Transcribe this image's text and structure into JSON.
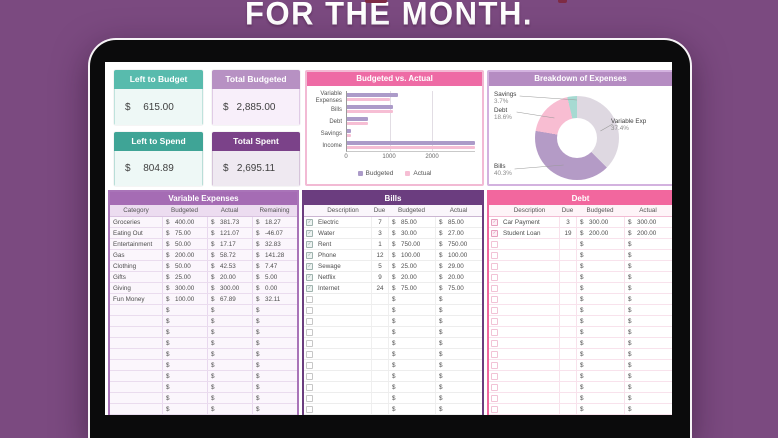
{
  "page": {
    "title": "FOR THE MONTH."
  },
  "colors": {
    "background": "#7b4a80",
    "teal": "#58bbad",
    "teal_dark": "#3fa496",
    "lavender": "#b791c3",
    "purple_dark": "#7b4289",
    "pink_header": "#ee6ba5",
    "donut_header": "#b58cc2",
    "variable_expenses_header": "#a56cb4",
    "bills_header": "#6b3d7f",
    "debt_header": "#f2679e"
  },
  "summary_cards": [
    {
      "label": "Left to Budget",
      "currency": "$",
      "amount": "615.00"
    },
    {
      "label": "Total Budgeted",
      "currency": "$",
      "amount": "2,885.00"
    },
    {
      "label": "Left to Spend",
      "currency": "$",
      "amount": "804.89"
    },
    {
      "label": "Total Spent",
      "currency": "$",
      "amount": "2,695.11"
    }
  ],
  "chart_data": [
    {
      "type": "bar",
      "orientation": "horizontal",
      "title": "Budgeted vs. Actual",
      "categories": [
        "Variable Expenses",
        "Bills",
        "Debt",
        "Savings",
        "Income"
      ],
      "series": [
        {
          "name": "Budgeted",
          "color": "#ac9bc9",
          "values": [
            1200,
            1085,
            500,
            100,
            3500
          ]
        },
        {
          "name": "Actual",
          "color": "#f6bed4",
          "values": [
            1009.11,
            1086,
            500,
            100,
            3500
          ]
        }
      ],
      "x_ticks": [
        0,
        1000,
        2000
      ],
      "xlim": [
        0,
        3000
      ],
      "grid": true,
      "legend_position": "bottom",
      "note": "Income bars extend to the right edge of the plot"
    },
    {
      "type": "pie",
      "donut": true,
      "title": "Breakdown of Expenses",
      "slices": [
        {
          "label": "Variable Exp",
          "pct": 37.4,
          "pct_text": "37.4%",
          "color": "#ded8e1"
        },
        {
          "label": "Bills",
          "pct": 40.3,
          "pct_text": "40.3%",
          "color": "#b49bc6"
        },
        {
          "label": "Debt",
          "pct": 18.6,
          "pct_text": "18.6%",
          "color": "#f8bdd2"
        },
        {
          "label": "Savings",
          "pct": 3.7,
          "pct_text": "3.7%",
          "color": "#a6dad2"
        }
      ]
    }
  ],
  "tables": [
    {
      "id": "variable_expenses",
      "title": "Variable Expenses",
      "has_checkbox": false,
      "columns": [
        "Category",
        "Budgeted",
        "Actual",
        "Remaining"
      ],
      "money_cols": [
        1,
        2,
        3
      ],
      "rows": [
        [
          "Groceries",
          "400.00",
          "381.73",
          "18.27"
        ],
        [
          "Eating Out",
          "75.00",
          "121.07",
          "-46.07"
        ],
        [
          "Entertainment",
          "50.00",
          "17.17",
          "32.83"
        ],
        [
          "Gas",
          "200.00",
          "58.72",
          "141.28"
        ],
        [
          "Clothing",
          "50.00",
          "42.53",
          "7.47"
        ],
        [
          "Gifts",
          "25.00",
          "20.00",
          "5.00"
        ],
        [
          "Giving",
          "300.00",
          "300.00",
          "0.00"
        ],
        [
          "Fun Money",
          "100.00",
          "67.89",
          "32.11"
        ]
      ],
      "empty_rows": 12
    },
    {
      "id": "bills",
      "title": "Bills",
      "has_checkbox": true,
      "columns": [
        "Description",
        "Due",
        "Budgeted",
        "Actual"
      ],
      "money_cols": [
        2,
        3
      ],
      "rows": [
        [
          "Electric",
          "7",
          "85.00",
          "85.00"
        ],
        [
          "Water",
          "3",
          "30.00",
          "27.00"
        ],
        [
          "Rent",
          "1",
          "750.00",
          "750.00"
        ],
        [
          "Phone",
          "12",
          "100.00",
          "100.00"
        ],
        [
          "Sewage",
          "5",
          "25.00",
          "29.00"
        ],
        [
          "Netflix",
          "9",
          "20.00",
          "20.00"
        ],
        [
          "Internet",
          "24",
          "75.00",
          "75.00"
        ]
      ],
      "empty_rows": 13
    },
    {
      "id": "debt",
      "title": "Debt",
      "has_checkbox": true,
      "columns": [
        "Description",
        "Due",
        "Budgeted",
        "Actual"
      ],
      "money_cols": [
        2,
        3
      ],
      "rows": [
        [
          "Car Payment",
          "3",
          "300.00",
          "300.00"
        ],
        [
          "Student Loan",
          "19",
          "200.00",
          "200.00"
        ]
      ],
      "empty_rows": 18
    }
  ]
}
